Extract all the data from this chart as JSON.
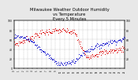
{
  "title": "Milwaukee Weather Outdoor Humidity\nvs Temperature\nEvery 5 Minutes",
  "title_fontsize": 3.8,
  "background_color": "#e8e8e8",
  "plot_bg_color": "#ffffff",
  "humidity_color": "#dd0000",
  "temp_color": "#0000cc",
  "marker_size": 0.5,
  "ylim_left": [
    0,
    100
  ],
  "ylim_right": [
    0,
    100
  ],
  "n_points": 200,
  "seed": 7
}
